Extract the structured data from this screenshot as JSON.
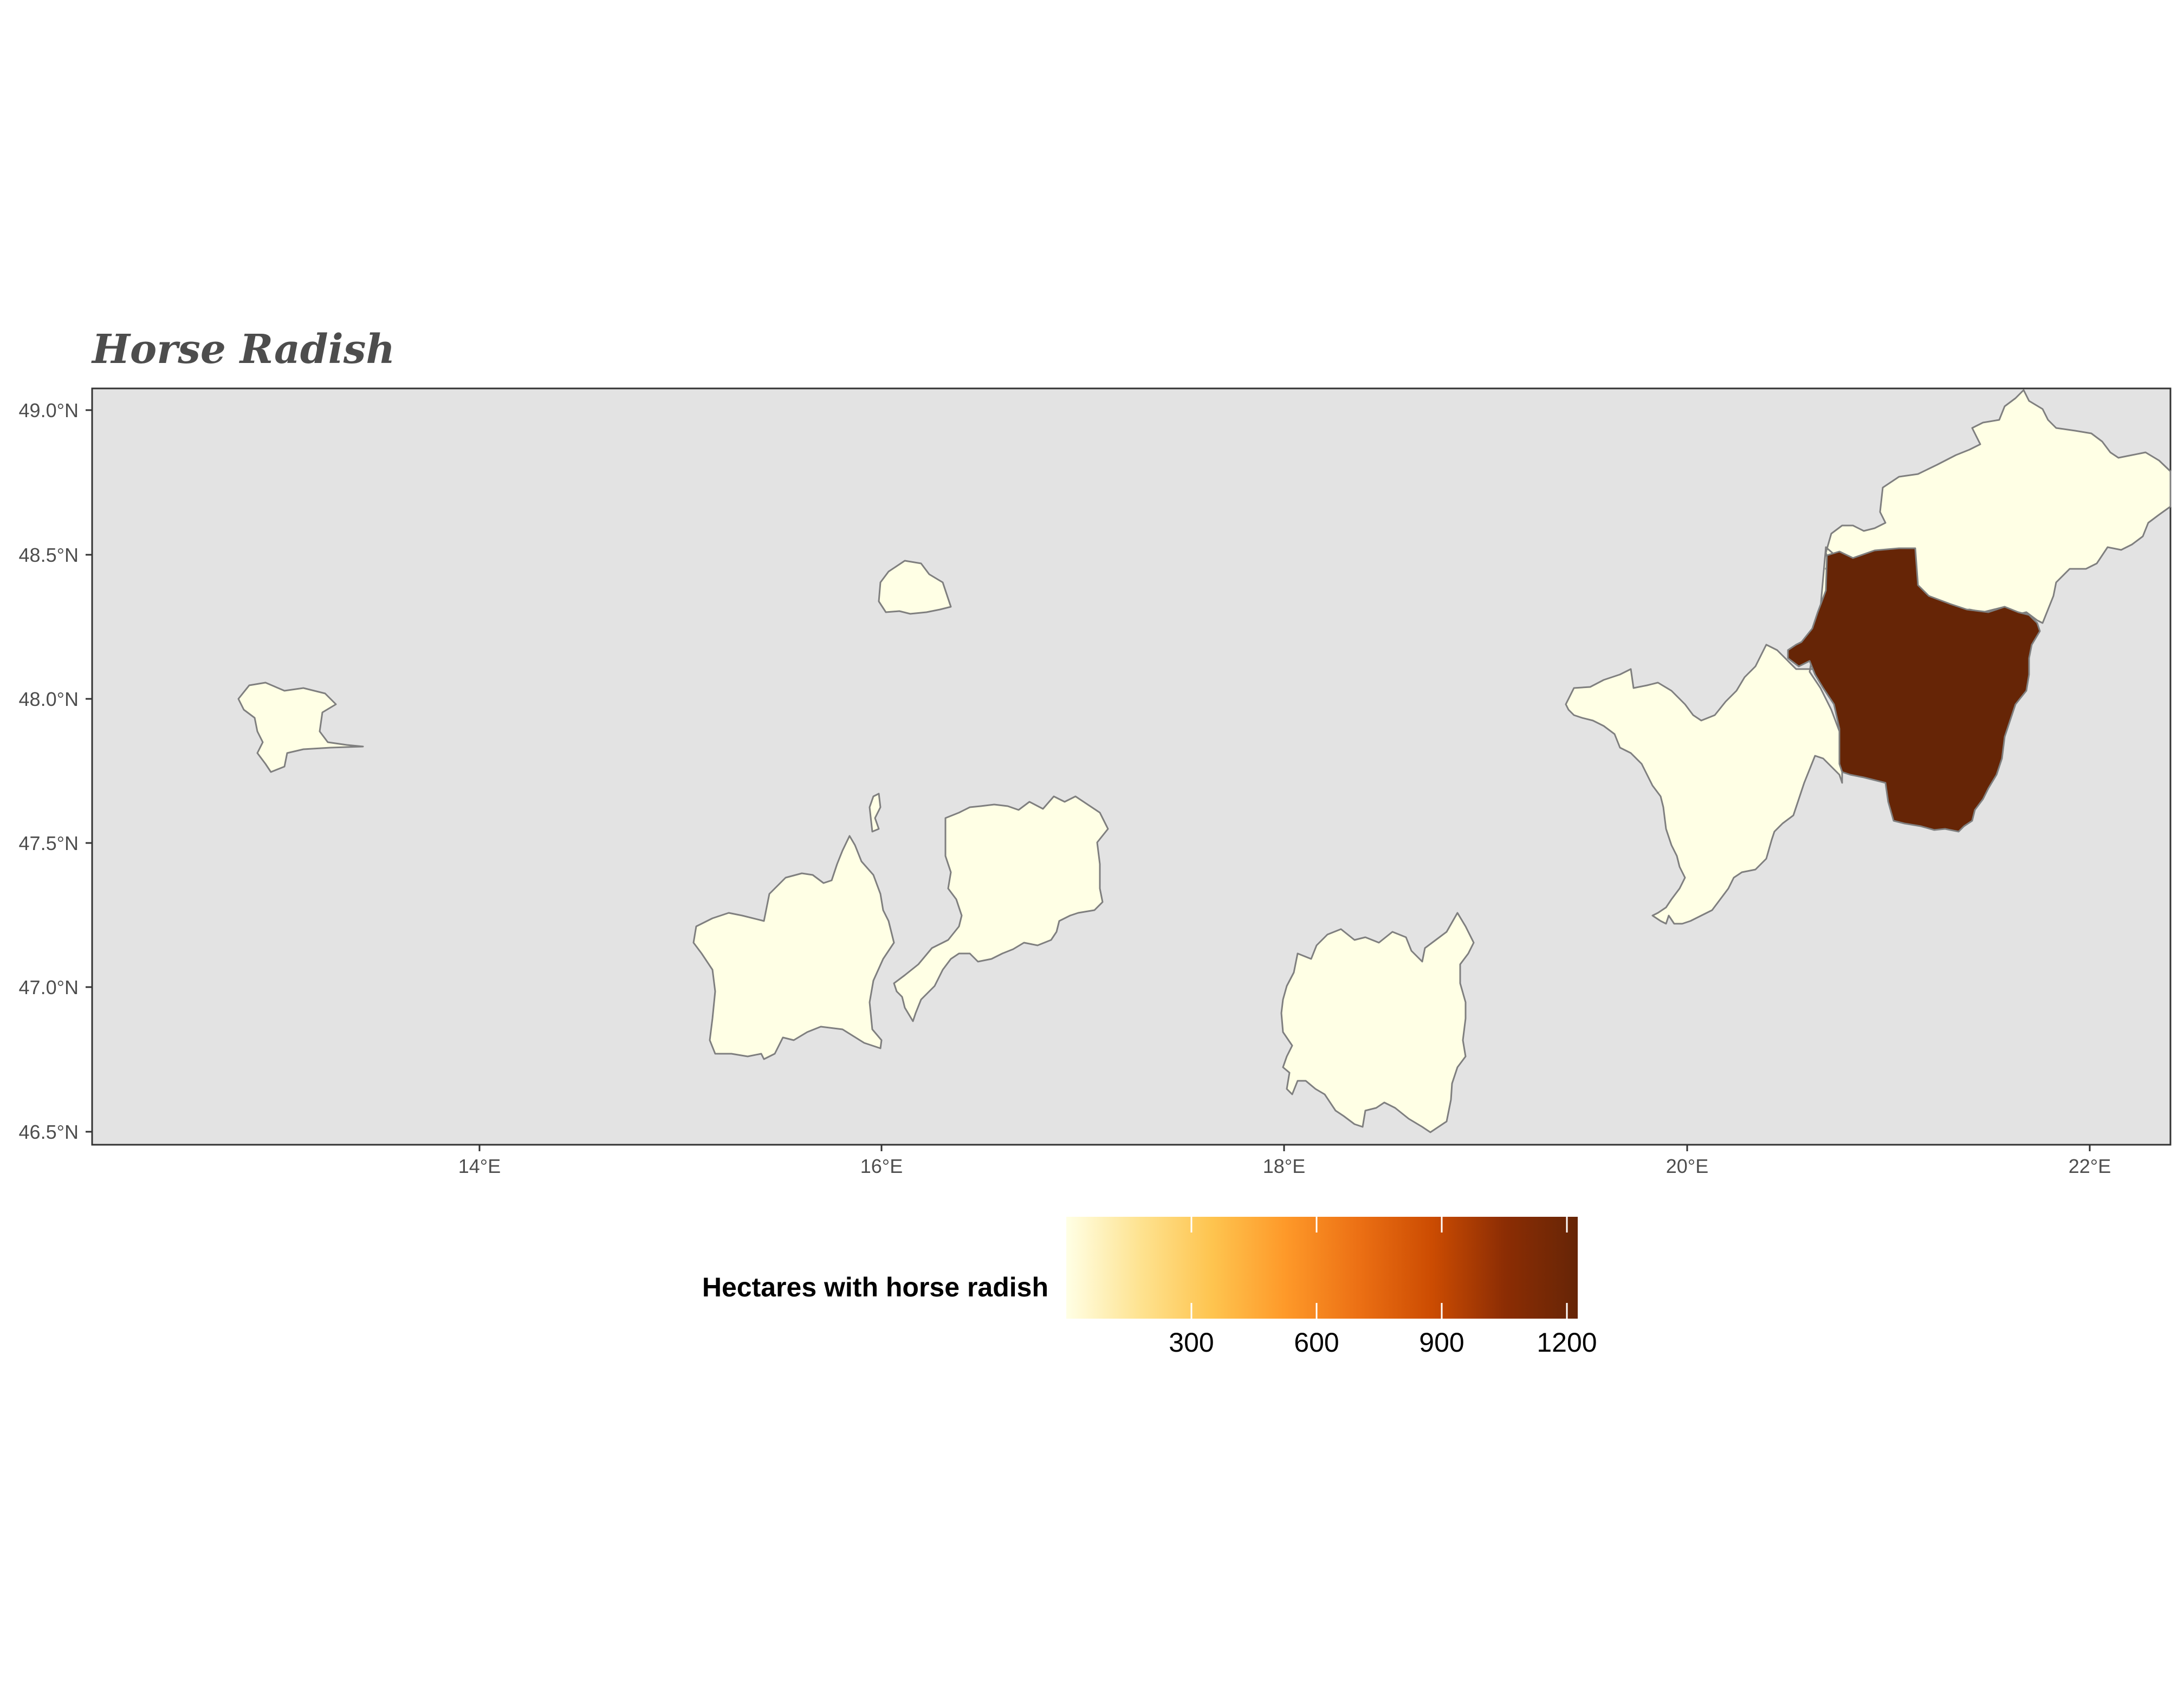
{
  "title": "Horse Radish",
  "axes": {
    "y_labels": [
      "49.0°N",
      "48.5°N",
      "48.0°N",
      "47.5°N",
      "47.0°N",
      "46.5°N"
    ],
    "x_labels": [
      "14°E",
      "16°E",
      "18°E",
      "20°E",
      "22°E"
    ]
  },
  "legend": {
    "title": "Hectares with horse radish",
    "tick_labels": [
      "300",
      "600",
      "900",
      "1200"
    ],
    "colors": [
      "#ffffe5",
      "#fee391",
      "#fec44f",
      "#fe9929",
      "#ec7014",
      "#cc4c02",
      "#8c2d04",
      "#662506"
    ]
  },
  "colors": {
    "panel": "#e3e3e3",
    "low_fill": "#ffffe5",
    "high_fill": "#662506",
    "border": "#7f7f7f"
  },
  "chart_data": {
    "type": "choropleth",
    "title": "Horse Radish",
    "xlim": [
      12.1,
      22.4
    ],
    "ylim": [
      46.45,
      49.07
    ],
    "fill_scale": {
      "name": "Hectares with horse radish",
      "range": [
        0,
        1250
      ],
      "breaks": [
        300,
        600,
        900,
        1200
      ],
      "palette": "YlOrBr"
    },
    "regions": [
      {
        "id": "region-a",
        "value": 0
      },
      {
        "id": "region-b",
        "value": 0
      },
      {
        "id": "region-c",
        "value": 0
      },
      {
        "id": "region-d",
        "value": 0
      },
      {
        "id": "region-e",
        "value": 0
      },
      {
        "id": "region-f",
        "value": 0
      },
      {
        "id": "region-g",
        "value": 0
      },
      {
        "id": "region-h",
        "value": 1250
      }
    ]
  }
}
